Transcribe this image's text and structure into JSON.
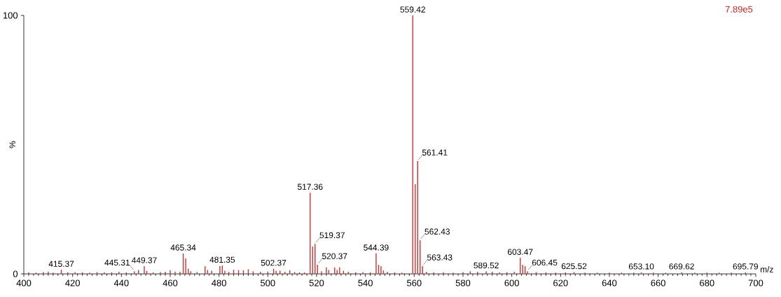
{
  "chart_data": {
    "type": "bar",
    "xlabel": "m/z",
    "ylabel": "%",
    "color": "#cc3333",
    "x": [
      402,
      405,
      408,
      410,
      412,
      415.37,
      418,
      421,
      424,
      427,
      430,
      433,
      436,
      439,
      442,
      445.31,
      447,
      449.37,
      450.4,
      453,
      456,
      458,
      460,
      462,
      464,
      465.34,
      466.35,
      467.4,
      468.4,
      471,
      474.3,
      475.3,
      477,
      480.35,
      481.35,
      482.4,
      484,
      486,
      488,
      490,
      492,
      494,
      497,
      500,
      502.37,
      503.4,
      505,
      507,
      509,
      511,
      513,
      515,
      517.36,
      518.37,
      519.37,
      520.37,
      522,
      524,
      525,
      527.4,
      528.4,
      529.4,
      531,
      533,
      536,
      539,
      542,
      544.39,
      545.4,
      546.4,
      547.4,
      549,
      552,
      555,
      559.42,
      560.42,
      561.41,
      562.43,
      563.43,
      565,
      568,
      572,
      576,
      580,
      583,
      586,
      589.52,
      592,
      595,
      598,
      601,
      603.47,
      604.47,
      605.47,
      606.45,
      610,
      614,
      618,
      622,
      625.52,
      630,
      635,
      640,
      645,
      650,
      653.1,
      658,
      663,
      669.62,
      675,
      680,
      685,
      690,
      695.79
    ],
    "values": [
      0.6,
      0.5,
      0.7,
      0.9,
      0.5,
      1.6,
      0.6,
      0.7,
      0.6,
      0.5,
      0.7,
      0.6,
      0.6,
      0.8,
      0.6,
      1.0,
      1.5,
      3.0,
      1.2,
      0.6,
      0.7,
      0.8,
      1.4,
      0.9,
      0.8,
      7.9,
      6.0,
      2.0,
      1.0,
      0.7,
      3.0,
      1.5,
      1.2,
      3.0,
      3.2,
      1.2,
      0.8,
      1.6,
      1.5,
      1.4,
      1.8,
      1.0,
      0.8,
      0.9,
      2.0,
      1.2,
      1.2,
      0.8,
      1.4,
      0.7,
      0.6,
      0.6,
      31.4,
      10.6,
      11.6,
      3.5,
      1.0,
      2.5,
      1.5,
      2.5,
      1.5,
      2.5,
      1.2,
      0.8,
      0.6,
      0.7,
      0.6,
      7.9,
      3.5,
      3.0,
      1.3,
      0.8,
      0.6,
      0.5,
      100,
      34.7,
      43.6,
      13.0,
      3.0,
      0.8,
      0.6,
      0.6,
      0.5,
      0.7,
      1.0,
      0.8,
      1.0,
      0.8,
      0.6,
      0.7,
      0.8,
      6.2,
      3.5,
      3.0,
      1.0,
      0.7,
      0.6,
      0.5,
      0.6,
      0.7,
      0.5,
      0.5,
      0.5,
      0.5,
      0.5,
      0.6,
      0.5,
      0.5,
      0.6,
      0.5,
      0.5,
      0.5,
      0.5,
      0.6
    ],
    "xlim": [
      400,
      700
    ],
    "xticks": [
      400,
      420,
      440,
      460,
      480,
      500,
      520,
      540,
      560,
      580,
      600,
      620,
      640,
      660,
      680,
      700
    ],
    "ylim": [
      0,
      100
    ],
    "yticks": [
      0,
      100
    ],
    "annotations": [
      "7.89e5",
      {
        "text": "415.37",
        "x": 415.37,
        "y": 1.6
      },
      {
        "text": "445.31",
        "x": 445.31,
        "y": 1.0
      },
      {
        "text": "449.37",
        "x": 449.37,
        "y": 3.0
      },
      {
        "text": "465.34",
        "x": 465.34,
        "y": 7.9
      },
      {
        "text": "481.35",
        "x": 481.35,
        "y": 3.2
      },
      {
        "text": "502.37",
        "x": 502.37,
        "y": 2.0
      },
      {
        "text": "517.36",
        "x": 517.36,
        "y": 31.4
      },
      {
        "text": "519.37",
        "x": 519.37,
        "y": 11.6
      },
      {
        "text": "520.37",
        "x": 520.37,
        "y": 3.5
      },
      {
        "text": "544.39",
        "x": 544.39,
        "y": 7.9
      },
      {
        "text": "559.42",
        "x": 559.42,
        "y": 100
      },
      {
        "text": "561.41",
        "x": 561.41,
        "y": 43.6
      },
      {
        "text": "562.43",
        "x": 562.43,
        "y": 13.0
      },
      {
        "text": "563.43",
        "x": 563.43,
        "y": 3.0
      },
      {
        "text": "589.52",
        "x": 589.52,
        "y": 1.0
      },
      {
        "text": "603.47",
        "x": 603.47,
        "y": 6.2
      },
      {
        "text": "606.45",
        "x": 606.45,
        "y": 1.0
      },
      {
        "text": "625.52",
        "x": 625.52,
        "y": 0.7
      },
      {
        "text": "653.10",
        "x": 653.1,
        "y": 0.6
      },
      {
        "text": "669.62",
        "x": 669.62,
        "y": 0.6
      },
      {
        "text": "695.79",
        "x": 695.79,
        "y": 0.6
      }
    ]
  }
}
